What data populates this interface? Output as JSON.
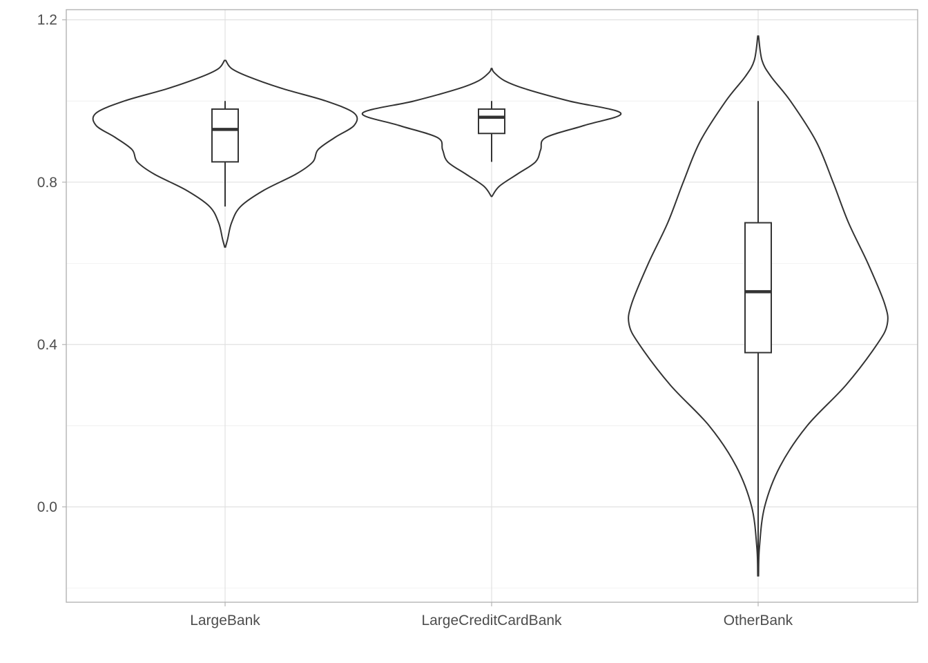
{
  "chart_data": {
    "type": "violin",
    "title": "",
    "xlabel": "",
    "ylabel": "",
    "categories": [
      "LargeBank",
      "LargeCreditCardBank",
      "OtherBank"
    ],
    "ylim": [
      -0.235,
      1.225
    ],
    "y_ticks": [
      0.0,
      0.4,
      0.8,
      1.2
    ],
    "y_tick_labels": [
      "0.0",
      "0.4",
      "0.8",
      "1.2"
    ],
    "grid": true,
    "legend": "none",
    "series": [
      {
        "category": "LargeBank",
        "box": {
          "whisker_low": 0.74,
          "q1": 0.85,
          "median": 0.93,
          "q3": 0.98,
          "whisker_high": 1.0
        },
        "violin_range": [
          0.64,
          1.1
        ],
        "density": [
          [
            0.64,
            0.003
          ],
          [
            0.66,
            0.02
          ],
          [
            0.7,
            0.05
          ],
          [
            0.74,
            0.12
          ],
          [
            0.78,
            0.3
          ],
          [
            0.82,
            0.55
          ],
          [
            0.85,
            0.68
          ],
          [
            0.88,
            0.72
          ],
          [
            0.91,
            0.85
          ],
          [
            0.94,
            1.0
          ],
          [
            0.97,
            1.0
          ],
          [
            1.0,
            0.78
          ],
          [
            1.03,
            0.45
          ],
          [
            1.06,
            0.18
          ],
          [
            1.08,
            0.05
          ],
          [
            1.1,
            0.005
          ]
        ]
      },
      {
        "category": "LargeCreditCardBank",
        "box": {
          "whisker_low": 0.85,
          "q1": 0.92,
          "median": 0.96,
          "q3": 0.98,
          "whisker_high": 1.0
        },
        "violin_range": [
          0.765,
          1.08
        ],
        "density": [
          [
            0.765,
            0.003
          ],
          [
            0.79,
            0.06
          ],
          [
            0.82,
            0.2
          ],
          [
            0.85,
            0.34
          ],
          [
            0.88,
            0.38
          ],
          [
            0.91,
            0.42
          ],
          [
            0.94,
            0.72
          ],
          [
            0.97,
            1.0
          ],
          [
            1.0,
            0.6
          ],
          [
            1.03,
            0.26
          ],
          [
            1.05,
            0.1
          ],
          [
            1.07,
            0.02
          ],
          [
            1.08,
            0.003
          ]
        ]
      },
      {
        "category": "OtherBank",
        "box": {
          "whisker_low": -0.16,
          "q1": 0.38,
          "median": 0.53,
          "q3": 0.7,
          "whisker_high": 1.0
        },
        "violin_range": [
          -0.17,
          1.16
        ],
        "density": [
          [
            -0.17,
            0.003
          ],
          [
            -0.1,
            0.01
          ],
          [
            0.0,
            0.05
          ],
          [
            0.1,
            0.17
          ],
          [
            0.2,
            0.38
          ],
          [
            0.3,
            0.68
          ],
          [
            0.4,
            0.92
          ],
          [
            0.45,
            1.0
          ],
          [
            0.5,
            0.98
          ],
          [
            0.6,
            0.85
          ],
          [
            0.7,
            0.7
          ],
          [
            0.8,
            0.58
          ],
          [
            0.9,
            0.45
          ],
          [
            1.0,
            0.25
          ],
          [
            1.06,
            0.1
          ],
          [
            1.1,
            0.03
          ],
          [
            1.16,
            0.003
          ]
        ]
      }
    ]
  }
}
